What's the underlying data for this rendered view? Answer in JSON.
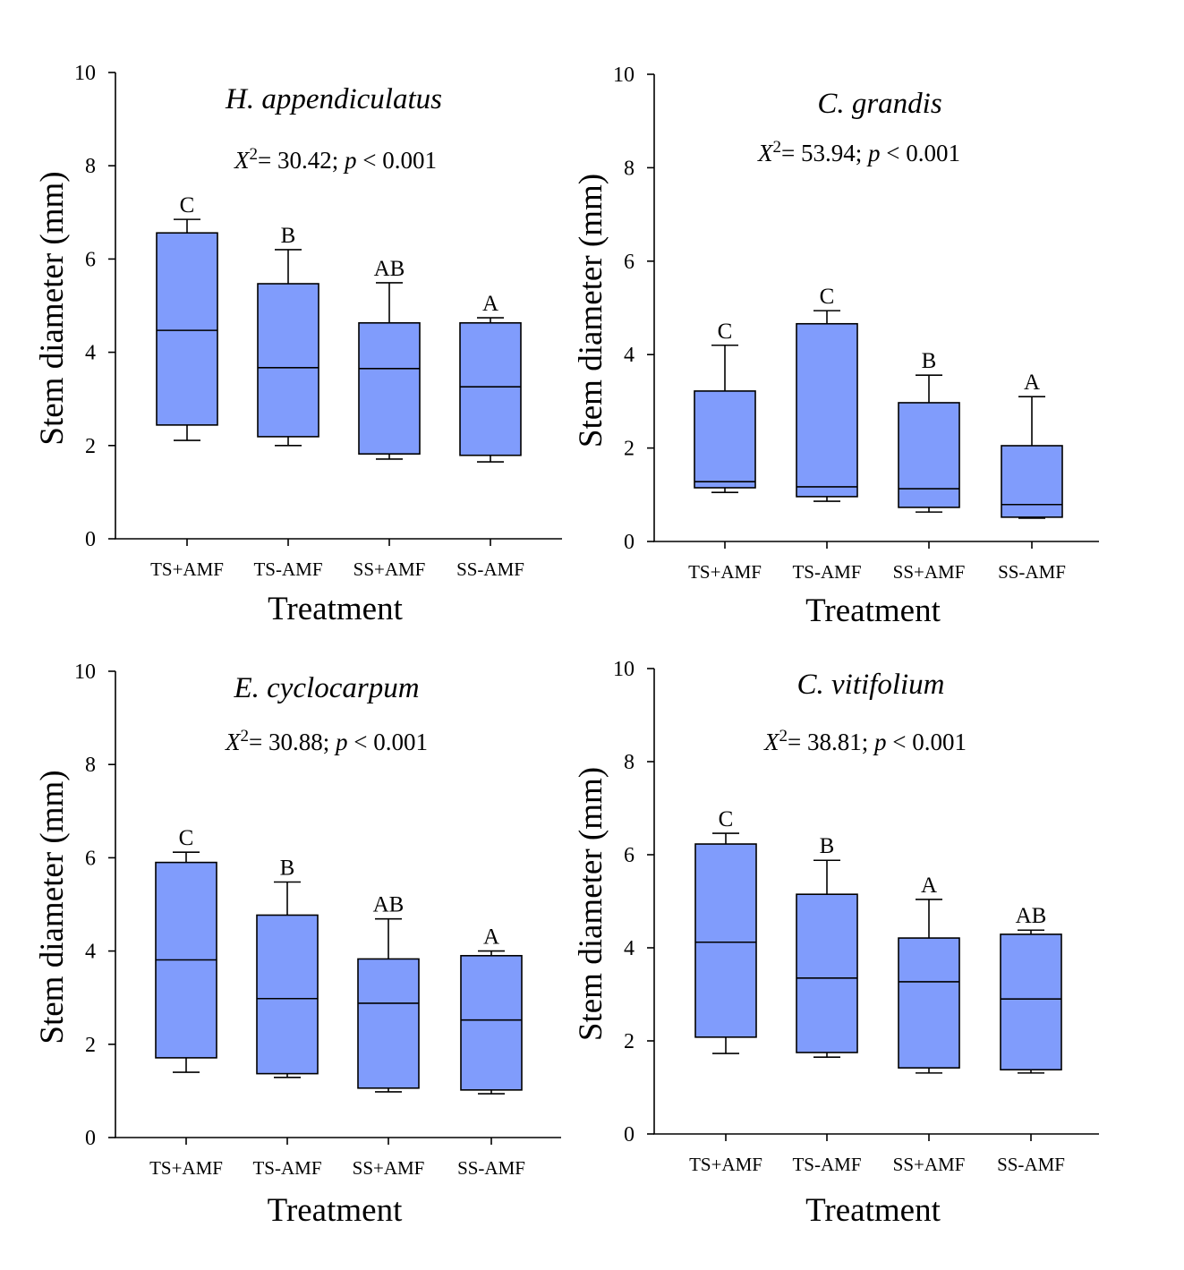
{
  "figure": {
    "box_color": "#809CFC",
    "line_color": "#000000"
  },
  "chart_data": [
    {
      "type": "box",
      "title": "H. appendiculatus",
      "stat": {
        "chi_label": "X",
        "chi_sup": "2",
        "chi_value": "= 30.42; ",
        "p_label": "p",
        "p_value": " < 0.001"
      },
      "xlabel": "Treatment",
      "ylabel": "Stem diameter (mm)",
      "ylim": [
        0,
        10
      ],
      "yticks": [
        0,
        2,
        4,
        6,
        8,
        10
      ],
      "categories": [
        "TS+AMF",
        "TS-AMF",
        "SS+AMF",
        "SS-AMF"
      ],
      "boxes": [
        {
          "low": 2.11,
          "q1": 2.44,
          "median": 4.47,
          "q3": 6.56,
          "high": 6.85,
          "letter": "C"
        },
        {
          "low": 2.0,
          "q1": 2.19,
          "median": 3.67,
          "q3": 5.47,
          "high": 6.2,
          "letter": "B"
        },
        {
          "low": 1.71,
          "q1": 1.82,
          "median": 3.65,
          "q3": 4.63,
          "high": 5.49,
          "letter": "AB"
        },
        {
          "low": 1.65,
          "q1": 1.79,
          "median": 3.26,
          "q3": 4.63,
          "high": 4.74,
          "letter": "A"
        }
      ]
    },
    {
      "type": "box",
      "title": "C. grandis",
      "stat": {
        "chi_label": "X",
        "chi_sup": "2",
        "chi_value": "= 53.94; ",
        "p_label": "p",
        "p_value": " < 0.001"
      },
      "xlabel": "Treatment",
      "ylabel": "Stem diameter (mm)",
      "ylim": [
        0,
        10
      ],
      "yticks": [
        0,
        2,
        4,
        6,
        8,
        10
      ],
      "categories": [
        "TS+AMF",
        "TS-AMF",
        "SS+AMF",
        "SS-AMF"
      ],
      "boxes": [
        {
          "low": 1.05,
          "q1": 1.15,
          "median": 1.28,
          "q3": 3.22,
          "high": 4.2,
          "letter": "C"
        },
        {
          "low": 0.86,
          "q1": 0.96,
          "median": 1.17,
          "q3": 4.66,
          "high": 4.94,
          "letter": "C"
        },
        {
          "low": 0.63,
          "q1": 0.73,
          "median": 1.13,
          "q3": 2.97,
          "high": 3.56,
          "letter": "B"
        },
        {
          "low": 0.5,
          "q1": 0.52,
          "median": 0.79,
          "q3": 2.05,
          "high": 3.1,
          "letter": "A"
        }
      ]
    },
    {
      "type": "box",
      "title": "E. cyclocarpum",
      "stat": {
        "chi_label": "X",
        "chi_sup": "2",
        "chi_value": "= 30.88; ",
        "p_label": "p",
        "p_value": " < 0.001"
      },
      "xlabel": "Treatment",
      "ylabel": "Stem diameter (mm)",
      "ylim": [
        0,
        10
      ],
      "yticks": [
        0,
        2,
        4,
        6,
        8,
        10
      ],
      "categories": [
        "TS+AMF",
        "TS-AMF",
        "SS+AMF",
        "SS-AMF"
      ],
      "boxes": [
        {
          "low": 1.4,
          "q1": 1.71,
          "median": 3.81,
          "q3": 5.9,
          "high": 6.12,
          "letter": "C"
        },
        {
          "low": 1.29,
          "q1": 1.37,
          "median": 2.98,
          "q3": 4.77,
          "high": 5.48,
          "letter": "B"
        },
        {
          "low": 0.98,
          "q1": 1.06,
          "median": 2.88,
          "q3": 3.83,
          "high": 4.69,
          "letter": "AB"
        },
        {
          "low": 0.94,
          "q1": 1.02,
          "median": 2.52,
          "q3": 3.9,
          "high": 4.0,
          "letter": "A"
        }
      ]
    },
    {
      "type": "box",
      "title": "C. vitifolium",
      "stat": {
        "chi_label": "X",
        "chi_sup": "2",
        "chi_value": "= 38.81; ",
        "p_label": "p",
        "p_value": " < 0.001"
      },
      "xlabel": "Treatment",
      "ylabel": "Stem diameter (mm)",
      "ylim": [
        0,
        10
      ],
      "yticks": [
        0,
        2,
        4,
        6,
        8,
        10
      ],
      "categories": [
        "TS+AMF",
        "TS-AMF",
        "SS+AMF",
        "SS-AMF"
      ],
      "boxes": [
        {
          "low": 1.73,
          "q1": 2.08,
          "median": 4.12,
          "q3": 6.23,
          "high": 6.46,
          "letter": "C"
        },
        {
          "low": 1.65,
          "q1": 1.75,
          "median": 3.35,
          "q3": 5.15,
          "high": 5.88,
          "letter": "B"
        },
        {
          "low": 1.31,
          "q1": 1.42,
          "median": 3.27,
          "q3": 4.21,
          "high": 5.04,
          "letter": "A"
        },
        {
          "low": 1.31,
          "q1": 1.38,
          "median": 2.9,
          "q3": 4.29,
          "high": 4.38,
          "letter": "AB"
        }
      ]
    }
  ]
}
